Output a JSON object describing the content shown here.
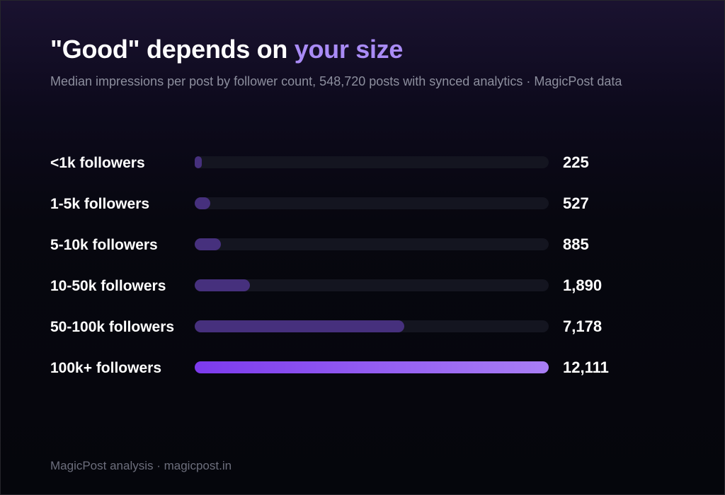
{
  "title": {
    "main": "\"Good\" depends on ",
    "accent": "your size"
  },
  "subtitle": "Median impressions per post by follower count, 548,720 posts with synced analytics · MagicPost data",
  "footer": "MagicPost analysis · magicpost.in",
  "colors": {
    "accent": "#a98bf6",
    "bar": "#46307d",
    "bar_highlight_start": "#7c3aed",
    "bar_highlight_end": "#a97ef5",
    "track": "#141520"
  },
  "chart_data": {
    "type": "bar",
    "orientation": "horizontal",
    "categories": [
      "<1k followers",
      "1-5k followers",
      "5-10k followers",
      "10-50k followers",
      "50-100k followers",
      "100k+ followers"
    ],
    "values": [
      225,
      527,
      885,
      1890,
      7178,
      12111
    ],
    "value_labels": [
      "225",
      "527",
      "885",
      "1,890",
      "7,178",
      "12,111"
    ],
    "highlight_index": 5,
    "xlim": [
      0,
      12111
    ],
    "grid": false,
    "legend": "none"
  }
}
